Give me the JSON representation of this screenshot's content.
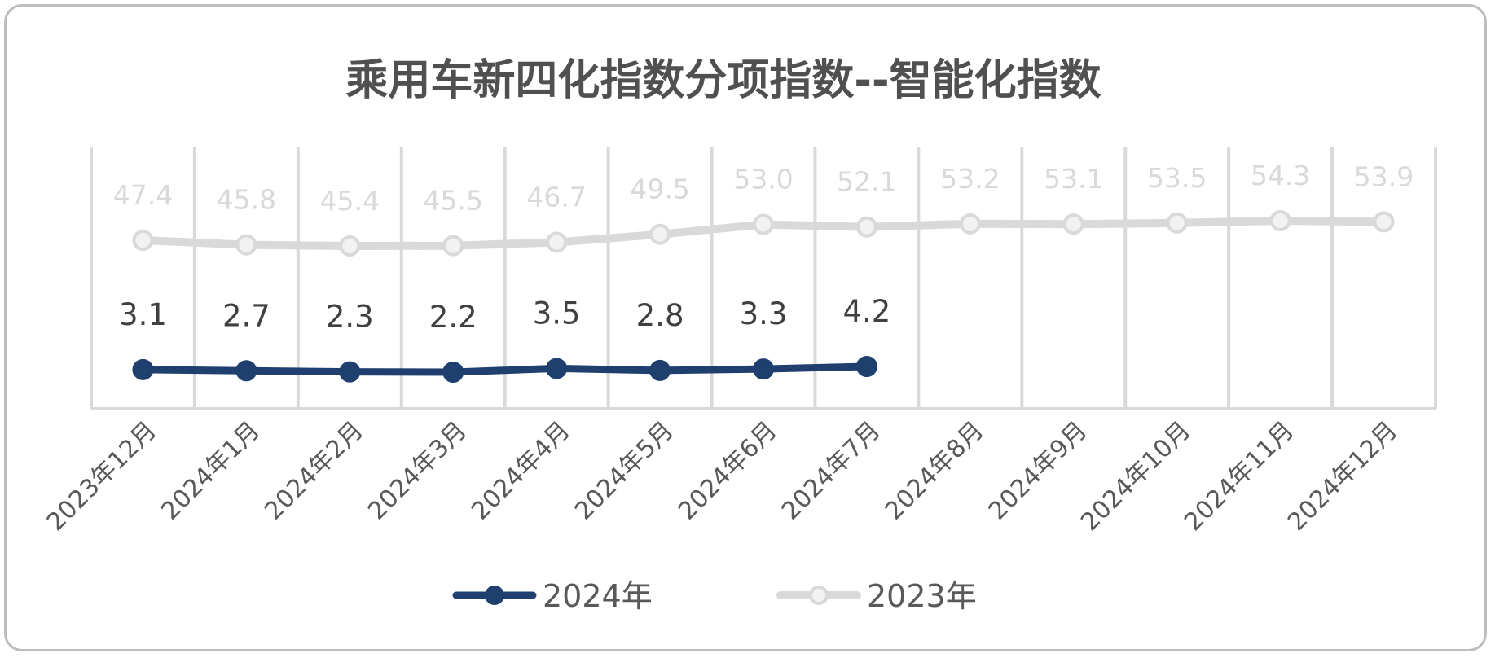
{
  "chart_data": {
    "type": "line",
    "title": "乘用车新四化指数分项指数--智能化指数",
    "categories": [
      "2023年12月",
      "2024年1月",
      "2024年2月",
      "2024年3月",
      "2024年4月",
      "2024年5月",
      "2024年6月",
      "2024年7月",
      "2024年8月",
      "2024年9月",
      "2024年10月",
      "2024年11月",
      "2024年12月"
    ],
    "series": [
      {
        "name": "2024年",
        "color": "#1f3f6e",
        "values": [
          3.1,
          2.7,
          2.3,
          2.2,
          3.5,
          2.8,
          3.3,
          4.2,
          null,
          null,
          null,
          null,
          null
        ]
      },
      {
        "name": "2023年",
        "color": "#d9d9d9",
        "values": [
          47.4,
          45.8,
          45.4,
          45.5,
          46.7,
          49.5,
          53.0,
          52.1,
          53.2,
          53.1,
          53.5,
          54.3,
          53.9
        ]
      }
    ],
    "legend_position": "bottom",
    "grid": "vertical",
    "data_labels": "above"
  }
}
